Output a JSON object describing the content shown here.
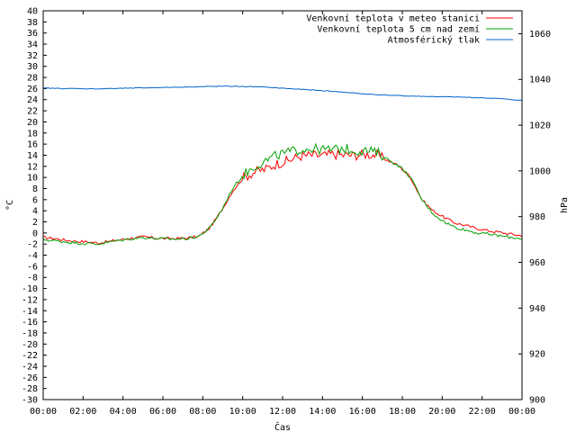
{
  "chart_data": {
    "type": "line",
    "title": "",
    "xlabel": "Čas",
    "ylabel": "°C",
    "y2label": "hPa",
    "x_ticks": [
      "00:00",
      "02:00",
      "04:00",
      "06:00",
      "08:00",
      "10:00",
      "12:00",
      "14:00",
      "16:00",
      "18:00",
      "20:00",
      "22:00",
      "00:00"
    ],
    "x_hours": [
      0,
      0.5,
      1,
      1.5,
      2,
      2.5,
      3,
      3.5,
      4,
      4.5,
      5,
      5.5,
      6,
      6.5,
      7,
      7.5,
      8,
      8.5,
      9,
      9.5,
      10,
      10.5,
      11,
      11.5,
      12,
      12.5,
      13,
      13.5,
      14,
      14.5,
      15,
      15.5,
      16,
      16.5,
      17,
      17.5,
      18,
      18.5,
      19,
      19.5,
      20,
      20.5,
      21,
      21.5,
      22,
      22.5,
      23,
      23.5,
      24
    ],
    "ylim": [
      -30,
      40
    ],
    "y2lim": [
      900,
      1070
    ],
    "y_ticks": [
      40,
      38,
      36,
      34,
      32,
      30,
      28,
      26,
      24,
      22,
      20,
      18,
      16,
      14,
      12,
      10,
      8,
      6,
      4,
      2,
      0,
      -2,
      -4,
      -6,
      -8,
      -10,
      -12,
      -14,
      -16,
      -18,
      -20,
      -22,
      -24,
      -26,
      -28,
      -30
    ],
    "y2_ticks": [
      1060,
      1040,
      1020,
      1000,
      980,
      960,
      940,
      920,
      900
    ],
    "legend_position": "top-right",
    "series": [
      {
        "name": "Venkovní teplota v meteo stanici",
        "color": "#ff0000",
        "axis": "left",
        "values": [
          -0.8,
          -1.0,
          -1.3,
          -1.5,
          -1.6,
          -1.8,
          -1.5,
          -1.2,
          -0.9,
          -0.7,
          -0.9,
          -1.0,
          -1.0,
          -0.9,
          -0.6,
          1.0,
          4.0,
          7.5,
          10.0,
          11.0,
          11.5,
          12.5,
          13.0,
          13.8,
          14.0,
          13.9,
          14.2,
          14.0,
          14.0,
          14.2,
          14.0,
          13.0,
          12.0,
          10.0,
          6.0,
          4.0,
          2.8,
          1.8,
          1.3,
          0.8,
          0.4,
          0.1,
          -0.2,
          -0.5
        ]
      },
      {
        "name": "Venkovní teplota 5 cm nad zemí",
        "color": "#00a000",
        "axis": "left",
        "values": [
          -1.2,
          -1.4,
          -1.6,
          -1.8,
          -1.9,
          -2.0,
          -1.6,
          -1.3,
          -1.0,
          -0.8,
          -1.0,
          -1.1,
          -1.1,
          -1.0,
          -0.6,
          1.0,
          4.0,
          8.0,
          10.5,
          12.0,
          13.0,
          14.0,
          14.5,
          15.0,
          15.2,
          15.0,
          15.0,
          15.2,
          14.8,
          14.8,
          14.5,
          13.2,
          12.0,
          10.0,
          6.0,
          3.5,
          2.0,
          1.0,
          0.5,
          0.0,
          -0.2,
          -0.5,
          -0.8,
          -1.0
        ]
      },
      {
        "name": "Atmosférický tlak",
        "color": "#0066cc",
        "axis": "right",
        "values": [
          1036.2,
          1036.1,
          1036.0,
          1036.0,
          1035.9,
          1035.9,
          1036.0,
          1036.1,
          1036.2,
          1036.3,
          1036.4,
          1036.5,
          1036.6,
          1036.7,
          1036.8,
          1036.9,
          1037.0,
          1037.0,
          1036.9,
          1036.8,
          1036.6,
          1036.3,
          1036.0,
          1035.7,
          1035.4,
          1035.1,
          1034.8,
          1034.4,
          1034.0,
          1033.6,
          1033.3,
          1033.1,
          1032.9,
          1032.7,
          1032.6,
          1032.5,
          1032.4,
          1032.3,
          1032.2,
          1032.0,
          1031.8,
          1031.6,
          1031.2,
          1030.8
        ]
      }
    ]
  }
}
